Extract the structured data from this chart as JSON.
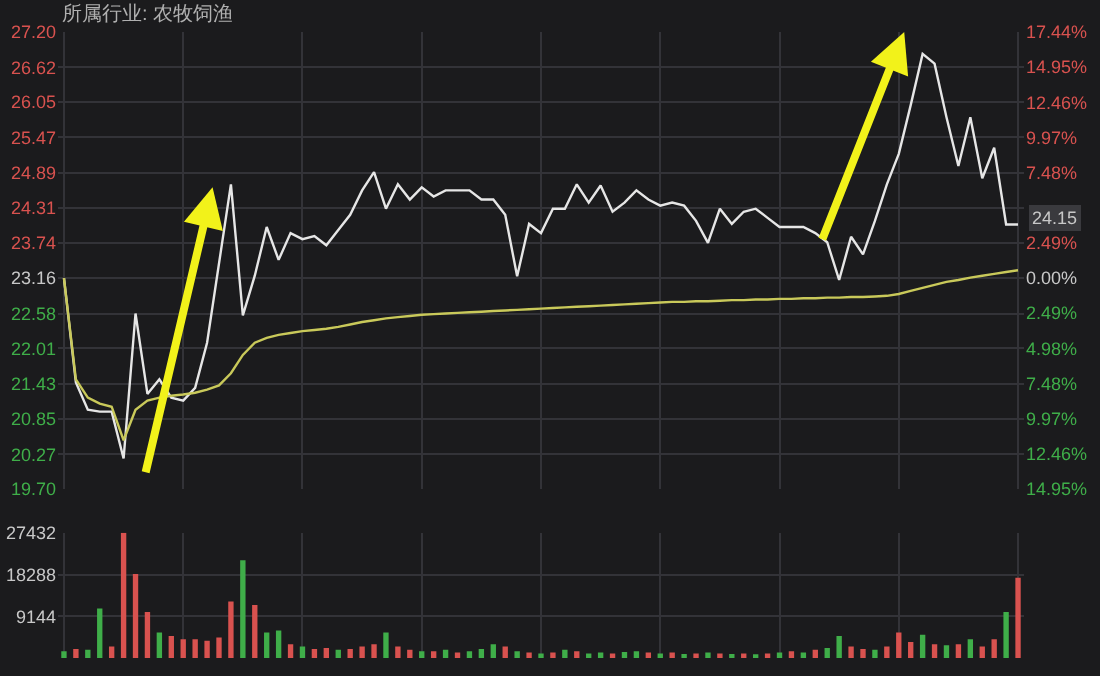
{
  "chart_data": [
    {
      "type": "line",
      "title": "所属行业: 农牧饲渔",
      "categories": [
        null,
        null,
        null,
        null,
        null,
        null,
        null,
        null,
        null,
        null,
        null,
        null,
        null,
        null,
        null,
        null,
        null,
        null,
        null,
        null,
        null,
        null,
        null,
        null,
        null,
        null,
        null,
        null,
        null,
        null,
        null,
        null,
        null,
        null,
        null,
        null,
        null,
        null,
        null,
        null,
        null,
        null,
        null,
        null,
        null,
        null,
        null,
        null,
        null,
        null,
        null,
        null,
        null,
        null,
        null,
        null,
        null,
        null,
        null,
        null,
        null,
        null,
        null,
        null,
        null,
        null,
        null,
        null,
        null,
        null,
        null,
        null,
        null,
        null,
        null,
        null,
        null,
        null,
        null,
        null,
        null
      ],
      "series": [
        {
          "color": "#e6e6e6",
          "values": [
            23.16,
            21.45,
            21.0,
            20.97,
            20.97,
            20.2,
            22.58,
            21.26,
            21.5,
            21.2,
            21.15,
            21.36,
            22.1,
            23.4,
            24.7,
            22.55,
            23.2,
            24.0,
            23.46,
            23.9,
            23.8,
            23.85,
            23.7,
            23.95,
            24.2,
            24.6,
            24.9,
            24.3,
            24.7,
            24.45,
            24.65,
            24.5,
            24.6,
            24.6,
            24.6,
            24.45,
            24.45,
            24.2,
            23.19,
            24.05,
            23.9,
            24.3,
            24.3,
            24.7,
            24.4,
            24.68,
            24.25,
            24.4,
            24.6,
            24.45,
            24.35,
            24.4,
            24.35,
            24.1,
            23.74,
            24.3,
            24.05,
            24.25,
            24.3,
            24.15,
            24.0,
            24.0,
            24.0,
            23.9,
            23.75,
            23.13,
            23.84,
            23.55,
            24.1,
            24.7,
            25.2,
            26.0,
            26.84,
            26.68,
            25.8,
            25.0,
            25.8,
            24.8,
            25.3,
            24.04,
            24.04
          ]
        },
        {
          "color": "#c9c95a",
          "values": [
            23.16,
            21.5,
            21.2,
            21.1,
            21.05,
            20.5,
            21.0,
            21.15,
            21.2,
            21.23,
            21.25,
            21.28,
            21.33,
            21.4,
            21.6,
            21.9,
            22.1,
            22.18,
            22.23,
            22.26,
            22.29,
            22.31,
            22.33,
            22.36,
            22.4,
            22.44,
            22.47,
            22.5,
            22.52,
            22.54,
            22.56,
            22.57,
            22.58,
            22.59,
            22.6,
            22.61,
            22.62,
            22.63,
            22.64,
            22.65,
            22.66,
            22.67,
            22.68,
            22.69,
            22.7,
            22.71,
            22.72,
            22.73,
            22.74,
            22.75,
            22.76,
            22.77,
            22.77,
            22.78,
            22.78,
            22.79,
            22.8,
            22.8,
            22.81,
            22.81,
            22.82,
            22.82,
            22.83,
            22.83,
            22.84,
            22.84,
            22.85,
            22.85,
            22.86,
            22.87,
            22.9,
            22.95,
            23.0,
            23.05,
            23.1,
            23.13,
            23.17,
            23.2,
            23.23,
            23.26,
            23.29
          ]
        }
      ],
      "ylim": [
        19.7,
        27.2
      ],
      "yticks": [
        {
          "value": 19.7,
          "label": "19.70"
        },
        {
          "value": 20.27,
          "label": "20.27"
        },
        {
          "value": 20.85,
          "label": "20.85"
        },
        {
          "value": 21.43,
          "label": "21.43"
        },
        {
          "value": 22.01,
          "label": "22.01"
        },
        {
          "value": 22.58,
          "label": "22.58"
        },
        {
          "value": 23.16,
          "label": "23.16"
        },
        {
          "value": 23.74,
          "label": "23.74"
        },
        {
          "value": 24.31,
          "label": "24.31"
        },
        {
          "value": 24.89,
          "label": "24.89"
        },
        {
          "value": 25.47,
          "label": "25.47"
        },
        {
          "value": 26.05,
          "label": "26.05"
        },
        {
          "value": 26.62,
          "label": "26.62"
        },
        {
          "value": 27.2,
          "label": "27.20"
        }
      ],
      "y2lim": [
        -14.95,
        17.44
      ],
      "y2ticks": [
        {
          "value": -14.95,
          "label": "14.95%"
        },
        {
          "value": -12.46,
          "label": "12.46%"
        },
        {
          "value": -9.97,
          "label": "9.97%"
        },
        {
          "value": -7.48,
          "label": "7.48%"
        },
        {
          "value": -4.98,
          "label": "4.98%"
        },
        {
          "value": -2.49,
          "label": "2.49%"
        },
        {
          "value": 0,
          "label": "0.00%"
        },
        {
          "value": 2.49,
          "label": "2.49%"
        },
        {
          "value": 7.48,
          "label": "7.48%"
        },
        {
          "value": 9.97,
          "label": "9.97%"
        },
        {
          "value": 12.46,
          "label": "12.46%"
        },
        {
          "value": 14.95,
          "label": "14.95%"
        },
        {
          "value": 17.44,
          "label": "17.44%"
        }
      ],
      "annotations": [
        {
          "text": "24.15",
          "y": 24.15
        }
      ],
      "grid": true
    },
    {
      "type": "bar",
      "categories": [
        null,
        null,
        null,
        null,
        null,
        null,
        null,
        null,
        null,
        null,
        null,
        null,
        null,
        null,
        null,
        null,
        null,
        null,
        null,
        null,
        null,
        null,
        null,
        null,
        null,
        null,
        null,
        null,
        null,
        null,
        null,
        null,
        null,
        null,
        null,
        null,
        null,
        null,
        null,
        null,
        null,
        null,
        null,
        null,
        null,
        null,
        null,
        null,
        null,
        null,
        null,
        null,
        null,
        null,
        null,
        null,
        null,
        null,
        null,
        null,
        null,
        null,
        null,
        null,
        null,
        null,
        null,
        null,
        null,
        null,
        null,
        null,
        null,
        null,
        null,
        null,
        null,
        null,
        null,
        null,
        null
      ],
      "values": [
        1500,
        2000,
        1800,
        10850,
        2500,
        27432,
        18400,
        10100,
        5600,
        4800,
        4100,
        4100,
        3800,
        4500,
        12400,
        21400,
        11600,
        5600,
        6000,
        3000,
        2500,
        2000,
        2200,
        1800,
        2000,
        2500,
        3000,
        5600,
        2500,
        1800,
        1500,
        1500,
        1800,
        1200,
        1500,
        2000,
        3000,
        2500,
        1500,
        1200,
        1000,
        1200,
        1800,
        1500,
        1000,
        1200,
        1000,
        1300,
        1500,
        1200,
        1000,
        1200,
        900,
        1000,
        1200,
        1000,
        900,
        1000,
        800,
        1000,
        1200,
        1500,
        1200,
        1800,
        2200,
        4800,
        2500,
        2000,
        1800,
        2500,
        5600,
        3500,
        5100,
        3000,
        2800,
        3000,
        4100,
        2500,
        4100,
        10100,
        17600
      ],
      "colors": [
        "#3fae49",
        "#d9524f",
        "#3fae49",
        "#3fae49",
        "#d9524f",
        "#d9524f",
        "#d9524f",
        "#d9524f",
        "#3fae49",
        "#d9524f",
        "#d9524f",
        "#d9524f",
        "#d9524f",
        "#d9524f",
        "#d9524f",
        "#3fae49",
        "#d9524f",
        "#3fae49",
        "#3fae49",
        "#d9524f",
        "#3fae49",
        "#d9524f",
        "#d9524f",
        "#3fae49",
        "#d9524f",
        "#d9524f",
        "#d9524f",
        "#3fae49",
        "#d9524f",
        "#d9524f",
        "#3fae49",
        "#d9524f",
        "#3fae49",
        "#d9524f",
        "#3fae49",
        "#3fae49",
        "#3fae49",
        "#d9524f",
        "#3fae49",
        "#d9524f",
        "#3fae49",
        "#d9524f",
        "#3fae49",
        "#d9524f",
        "#3fae49",
        "#3fae49",
        "#d9524f",
        "#3fae49",
        "#3fae49",
        "#d9524f",
        "#3fae49",
        "#d9524f",
        "#3fae49",
        "#d9524f",
        "#3fae49",
        "#d9524f",
        "#3fae49",
        "#d9524f",
        "#3fae49",
        "#d9524f",
        "#3fae49",
        "#d9524f",
        "#3fae49",
        "#d9524f",
        "#3fae49",
        "#3fae49",
        "#d9524f",
        "#d9524f",
        "#3fae49",
        "#d9524f",
        "#d9524f",
        "#d9524f",
        "#3fae49",
        "#d9524f",
        "#3fae49",
        "#d9524f",
        "#3fae49",
        "#d9524f",
        "#d9524f",
        "#3fae49",
        "#d9524f"
      ],
      "ylim": [
        0,
        27432
      ],
      "yticks": [
        9144,
        18288,
        27432
      ],
      "grid": true
    }
  ]
}
